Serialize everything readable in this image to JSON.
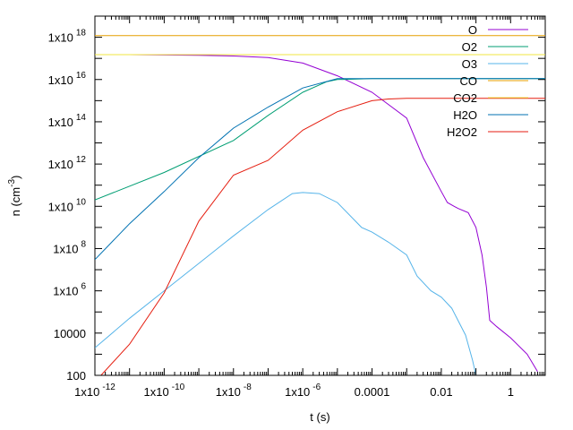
{
  "chart_data": {
    "type": "line",
    "xlabel": "t (s)",
    "ylabel": "n (cm^-3)",
    "ylabel_base": "n (cm",
    "ylabel_exp": "-3",
    "ylabel_close": ")",
    "x_scale": "log",
    "y_scale": "log",
    "xlim": [
      1e-12,
      10
    ],
    "ylim": [
      100,
      1e+19
    ],
    "x_ticks": [
      {
        "value": 1e-12,
        "base": "1x10",
        "exp": "-12"
      },
      {
        "value": 1e-10,
        "base": "1x10",
        "exp": "-10"
      },
      {
        "value": 1e-08,
        "base": "1x10",
        "exp": "-8"
      },
      {
        "value": 1e-06,
        "base": "1x10",
        "exp": "-6"
      },
      {
        "value": 0.0001,
        "base": "0.0001",
        "exp": ""
      },
      {
        "value": 0.01,
        "base": "0.01",
        "exp": ""
      },
      {
        "value": 1,
        "base": "1",
        "exp": ""
      }
    ],
    "y_ticks": [
      {
        "value": 100,
        "base": "100",
        "exp": ""
      },
      {
        "value": 10000,
        "base": "10000",
        "exp": ""
      },
      {
        "value": 1000000.0,
        "base": "1x10",
        "exp": "6"
      },
      {
        "value": 100000000.0,
        "base": "1x10",
        "exp": "8"
      },
      {
        "value": 10000000000.0,
        "base": "1x10",
        "exp": "10"
      },
      {
        "value": 1000000000000.0,
        "base": "1x10",
        "exp": "12"
      },
      {
        "value": 100000000000000.0,
        "base": "1x10",
        "exp": "14"
      },
      {
        "value": 1e+16,
        "base": "1x10",
        "exp": "16"
      },
      {
        "value": 1e+18,
        "base": "1x10",
        "exp": "18"
      }
    ],
    "grid": false,
    "legend_position": "top-right",
    "series": [
      {
        "name": "O",
        "color": "#9400d3",
        "points": [
          [
            1e-11,
            1.5e+17
          ],
          [
            1e-09,
            1.4e+17
          ],
          [
            1e-08,
            1.3e+17
          ],
          [
            1e-07,
            1.1e+17
          ],
          [
            1e-06,
            6e+16
          ],
          [
            1e-05,
            1.5e+16
          ],
          [
            0.0001,
            2500000000000000.0
          ],
          [
            0.001,
            150000000000000.0
          ],
          [
            0.003,
            2000000000000.0
          ],
          [
            0.01,
            50000000000.0
          ],
          [
            0.015,
            15000000000.0
          ],
          [
            0.03,
            8000000000.0
          ],
          [
            0.06,
            5000000000.0
          ],
          [
            0.1,
            1000000000.0
          ],
          [
            0.15,
            50000000.0
          ],
          [
            0.2,
            1500000.0
          ],
          [
            0.25,
            40000.0
          ],
          [
            0.4,
            20000.0
          ],
          [
            1,
            6000
          ],
          [
            3,
            1000
          ],
          [
            6,
            150
          ]
        ]
      },
      {
        "name": "O2",
        "color": "#009e73",
        "points": [
          [
            1e-12,
            20000000000.0
          ],
          [
            1e-10,
            400000000000.0
          ],
          [
            1e-08,
            13000000000000.0
          ],
          [
            1e-07,
            200000000000000.0
          ],
          [
            1e-06,
            2500000000000000.0
          ],
          [
            5e-06,
            8000000000000000.0
          ],
          [
            1e-05,
            1e+16
          ],
          [
            0.0001,
            1.1e+16
          ],
          [
            0.01,
            1.1e+16
          ],
          [
            1,
            1.1e+16
          ],
          [
            10,
            1.1e+16
          ]
        ]
      },
      {
        "name": "O3",
        "color": "#56b4e9",
        "points": [
          [
            1e-12,
            2000
          ],
          [
            1e-11,
            50000.0
          ],
          [
            1e-10,
            1000000.0
          ],
          [
            1e-09,
            20000000.0
          ],
          [
            1e-08,
            400000000.0
          ],
          [
            1e-07,
            7000000000.0
          ],
          [
            5e-07,
            40000000000.0
          ],
          [
            1e-06,
            45000000000.0
          ],
          [
            3e-06,
            40000000000.0
          ],
          [
            1e-05,
            15000000000.0
          ],
          [
            5e-05,
            1000000000.0
          ],
          [
            0.0001,
            600000000.0
          ],
          [
            0.0003,
            200000000.0
          ],
          [
            0.001,
            50000000.0
          ],
          [
            0.002,
            5000000.0
          ],
          [
            0.005,
            1000000.0
          ],
          [
            0.01,
            500000.0
          ],
          [
            0.02,
            150000.0
          ],
          [
            0.05,
            8000
          ],
          [
            0.08,
            500
          ],
          [
            0.1,
            100
          ]
        ]
      },
      {
        "name": "CO",
        "color": "#e69f00",
        "points": [
          [
            1e-12,
            1.2e+18
          ],
          [
            10,
            1.2e+18
          ]
        ]
      },
      {
        "name": "CO2",
        "color": "#f0e442",
        "line_color_note": "drawn with yellow line",
        "points": [
          [
            1e-12,
            1.5e+17
          ],
          [
            10,
            1.5e+17
          ]
        ]
      },
      {
        "name": "H2O",
        "color": "#0072b2",
        "points": [
          [
            1e-12,
            30000000.0
          ],
          [
            1e-11,
            1500000000.0
          ],
          [
            1e-10,
            50000000000.0
          ],
          [
            1e-09,
            2000000000000.0
          ],
          [
            1e-08,
            50000000000000.0
          ],
          [
            1e-07,
            500000000000000.0
          ],
          [
            1e-06,
            4000000000000000.0
          ],
          [
            1e-05,
            1.1e+16
          ],
          [
            0.0001,
            1.1e+16
          ],
          [
            1,
            1.1e+16
          ],
          [
            10,
            1.1e+16
          ]
        ]
      },
      {
        "name": "H2O2",
        "color": "#e51e10",
        "points": [
          [
            1.5e-12,
            100
          ],
          [
            1e-11,
            3000
          ],
          [
            1e-10,
            800000.0
          ],
          [
            1e-09,
            2000000000.0
          ],
          [
            1e-08,
            300000000000.0
          ],
          [
            1e-07,
            1500000000000.0
          ],
          [
            1e-06,
            40000000000000.0
          ],
          [
            1e-05,
            300000000000000.0
          ],
          [
            0.0001,
            1000000000000000.0
          ],
          [
            0.0003,
            1200000000000000.0
          ],
          [
            0.001,
            1300000000000000.0
          ],
          [
            1,
            1300000000000000.0
          ],
          [
            10,
            1300000000000000.0
          ]
        ]
      }
    ]
  }
}
